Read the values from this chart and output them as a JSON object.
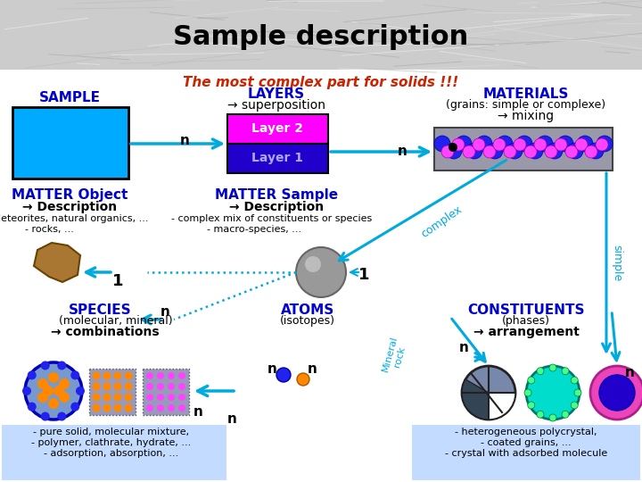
{
  "title": "Sample description",
  "subtitle": "The most complex part for solids !!!",
  "subtitle_color": "#cc2200",
  "blue_bold": "#0000cc",
  "arrow_cyan": "#00aadd",
  "labels": {
    "SAMPLE": "SAMPLE",
    "LAYERS": "LAYERS",
    "superposition": "→ superposition",
    "MATERIALS": "MATERIALS",
    "grains": "(grains: simple or complexe)",
    "mixing": "→ mixing",
    "Layer2": "Layer 2",
    "Layer1": "Layer 1",
    "MATTER_Object": "MATTER Object",
    "desc1": "→ Description",
    "meteorites": "- Meteorites, natural organics, ...",
    "rocks": "- rocks, ...",
    "MATTER_Sample": "MATTER Sample",
    "desc2": "→ Description",
    "complex_mix": "- complex mix of constituents or species",
    "macro": "- macro-species, ...",
    "SPECIES": "SPECIES",
    "molecular": "(molecular, mineral)",
    "combinations": "→ combinations",
    "ATOMS": "ATOMS",
    "isotopes": "(isotopes)",
    "CONSTITUENTS": "CONSTITUENTS",
    "phases": "(phases)",
    "arrangement": "→ arrangement",
    "n": "n",
    "complex_label": "complex",
    "simple_label": "simple",
    "mineral_rock": "Mineral\nrock",
    "pure_solid": "- pure solid, molecular mixture,",
    "polymer": "- polymer, clathrate, hydrate, ...",
    "adsorption": "- adsorption, absorption, ...",
    "hetero": "- heterogeneous polycrystal,",
    "coated": "- coated grains, ...",
    "crystal": "- crystal with adsorbed molecule"
  },
  "colors": {
    "sample_box": "#00aaff",
    "layer2": "#ff00ff",
    "layer1": "#2200cc",
    "mat_bg": "#9999aa",
    "dot_blue": "#2222ee",
    "dot_pink": "#ff44ff",
    "dot_black": "#000000",
    "rock_brown": "#aa7733",
    "const1_gray": "#7788aa",
    "const1_dark": "#334455",
    "const2_teal": "#00ddcc",
    "const3_pink": "#ee44bb",
    "const3_blue": "#2200cc",
    "species_bg": "#8888cc",
    "species_orange": "#ff8800",
    "species_blue2": "#2200ee",
    "species_pink": "#ff44ff",
    "text_bg_blue": "#aaccff"
  }
}
